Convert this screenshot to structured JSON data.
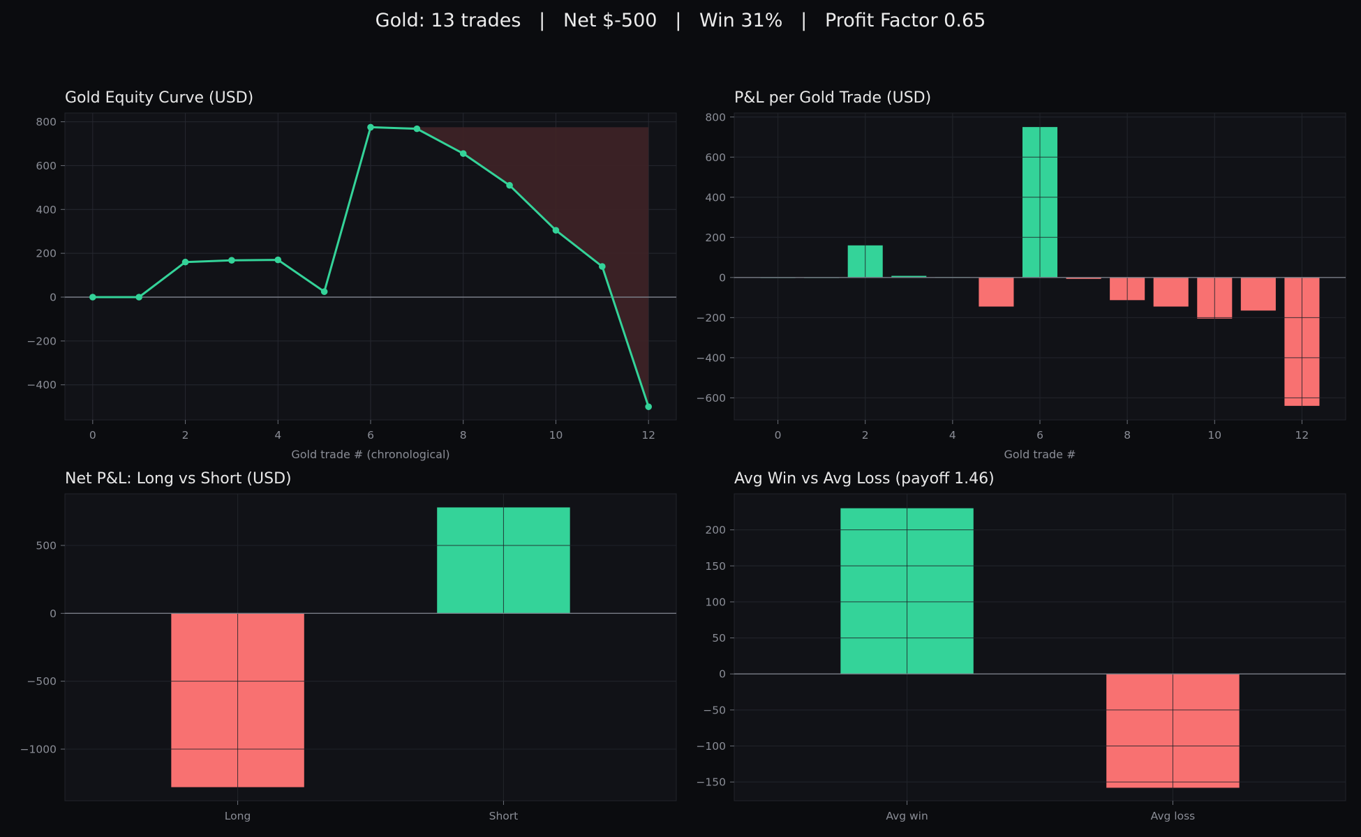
{
  "suptitle": "Gold: 13 trades   |   Net $-500   |   Win 31%   |   Profit Factor 0.65",
  "colors": {
    "background": "#0b0c0f",
    "panel": "#111217",
    "grid": "#262830",
    "positive": "#34d399",
    "negative": "#f87171",
    "drawdown": "#3d2326",
    "zero_line": "#7a7e88"
  },
  "chart_data": [
    {
      "id": "equity",
      "type": "line",
      "title": "Gold Equity Curve (USD)",
      "xlabel": "Gold trade # (chronological)",
      "ylabel": "",
      "x": [
        0,
        1,
        2,
        3,
        4,
        5,
        6,
        7,
        8,
        9,
        10,
        11,
        12
      ],
      "values": [
        0,
        0,
        160,
        168,
        170,
        25,
        775,
        768,
        655,
        510,
        305,
        140,
        -500
      ],
      "xlim": [
        -0.6,
        12.6
      ],
      "ylim": [
        -560,
        840
      ],
      "xticks": [
        0,
        2,
        4,
        6,
        8,
        10,
        12
      ],
      "yticks": [
        -400,
        -200,
        0,
        200,
        400,
        600,
        800
      ],
      "drawdown_shading": true,
      "grid": true
    },
    {
      "id": "pnl",
      "type": "bar",
      "title": "P&L per Gold Trade (USD)",
      "xlabel": "Gold trade #",
      "ylabel": "",
      "x": [
        0,
        1,
        2,
        3,
        4,
        5,
        6,
        7,
        8,
        9,
        10,
        11,
        12
      ],
      "values": [
        0,
        0,
        160,
        8,
        2,
        -145,
        750,
        -7,
        -113,
        -145,
        -205,
        -165,
        -640
      ],
      "xlim": [
        -1,
        13
      ],
      "ylim": [
        -710,
        820
      ],
      "xticks": [
        0,
        2,
        4,
        6,
        8,
        10,
        12
      ],
      "yticks": [
        -600,
        -400,
        -200,
        0,
        200,
        400,
        600,
        800
      ],
      "grid": true
    },
    {
      "id": "longshort",
      "type": "bar",
      "title": "Net P&L: Long vs Short (USD)",
      "xlabel": "",
      "ylabel": "",
      "categories": [
        "Long",
        "Short"
      ],
      "values": [
        -1280,
        780
      ],
      "ylim": [
        -1380,
        880
      ],
      "yticks": [
        -1000,
        -500,
        0,
        500
      ],
      "grid": true
    },
    {
      "id": "winloss",
      "type": "bar",
      "title": "Avg Win vs Avg Loss  (payoff 1.46)",
      "xlabel": "",
      "ylabel": "",
      "categories": [
        "Avg win",
        "Avg loss"
      ],
      "values": [
        230,
        -158
      ],
      "ylim": [
        -176,
        250
      ],
      "yticks": [
        -150,
        -100,
        -50,
        0,
        50,
        100,
        150,
        200
      ],
      "grid": true
    }
  ]
}
